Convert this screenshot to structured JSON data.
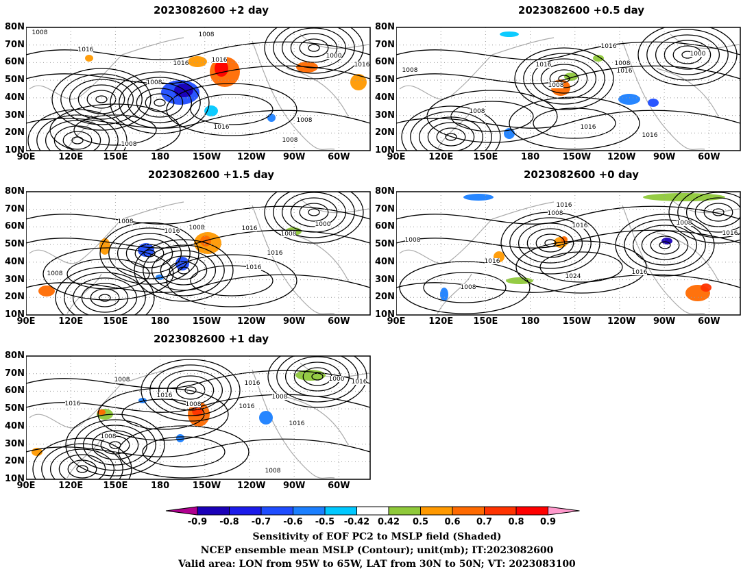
{
  "panels": [
    {
      "title": "2023082600 +2 day"
    },
    {
      "title": "2023082600 +0.5 day"
    },
    {
      "title": "2023082600 +1.5 day"
    },
    {
      "title": "2023082600 +0 day"
    },
    {
      "title": "2023082600 +1 day"
    }
  ],
  "lon_ticks": [
    "90E",
    "120E",
    "150E",
    "180",
    "150W",
    "120W",
    "90W",
    "60W"
  ],
  "lat_ticks": [
    "80N",
    "70N",
    "60N",
    "50N",
    "40N",
    "30N",
    "20N",
    "10N"
  ],
  "contour_values": [
    "1000",
    "1008",
    "1016",
    "1024"
  ],
  "colorbar": {
    "ticks": [
      "-0.9",
      "-0.8",
      "-0.7",
      "-0.6",
      "-0.5",
      "-0.42",
      "0.42",
      "0.5",
      "0.6",
      "0.7",
      "0.8",
      "0.9"
    ],
    "colors": [
      "#b0008f",
      "#1a00b8",
      "#1b1bea",
      "#1f4dff",
      "#1b7fff",
      "#00c8ff",
      "#ffffff",
      "#8fc93a",
      "#ff9900",
      "#ff6a00",
      "#ff3300",
      "#ff0000",
      "#ff99cc"
    ]
  },
  "captions": {
    "line1": "Sensitivity of EOF PC2 to MSLP field (Shaded)",
    "line2": "NCEP ensemble mean MSLP (Contour); unit(mb); IT:2023082600",
    "line3": "Valid area: LON from 95W to 65W, LAT from 30N to 50N; VT: 2023083100"
  }
}
